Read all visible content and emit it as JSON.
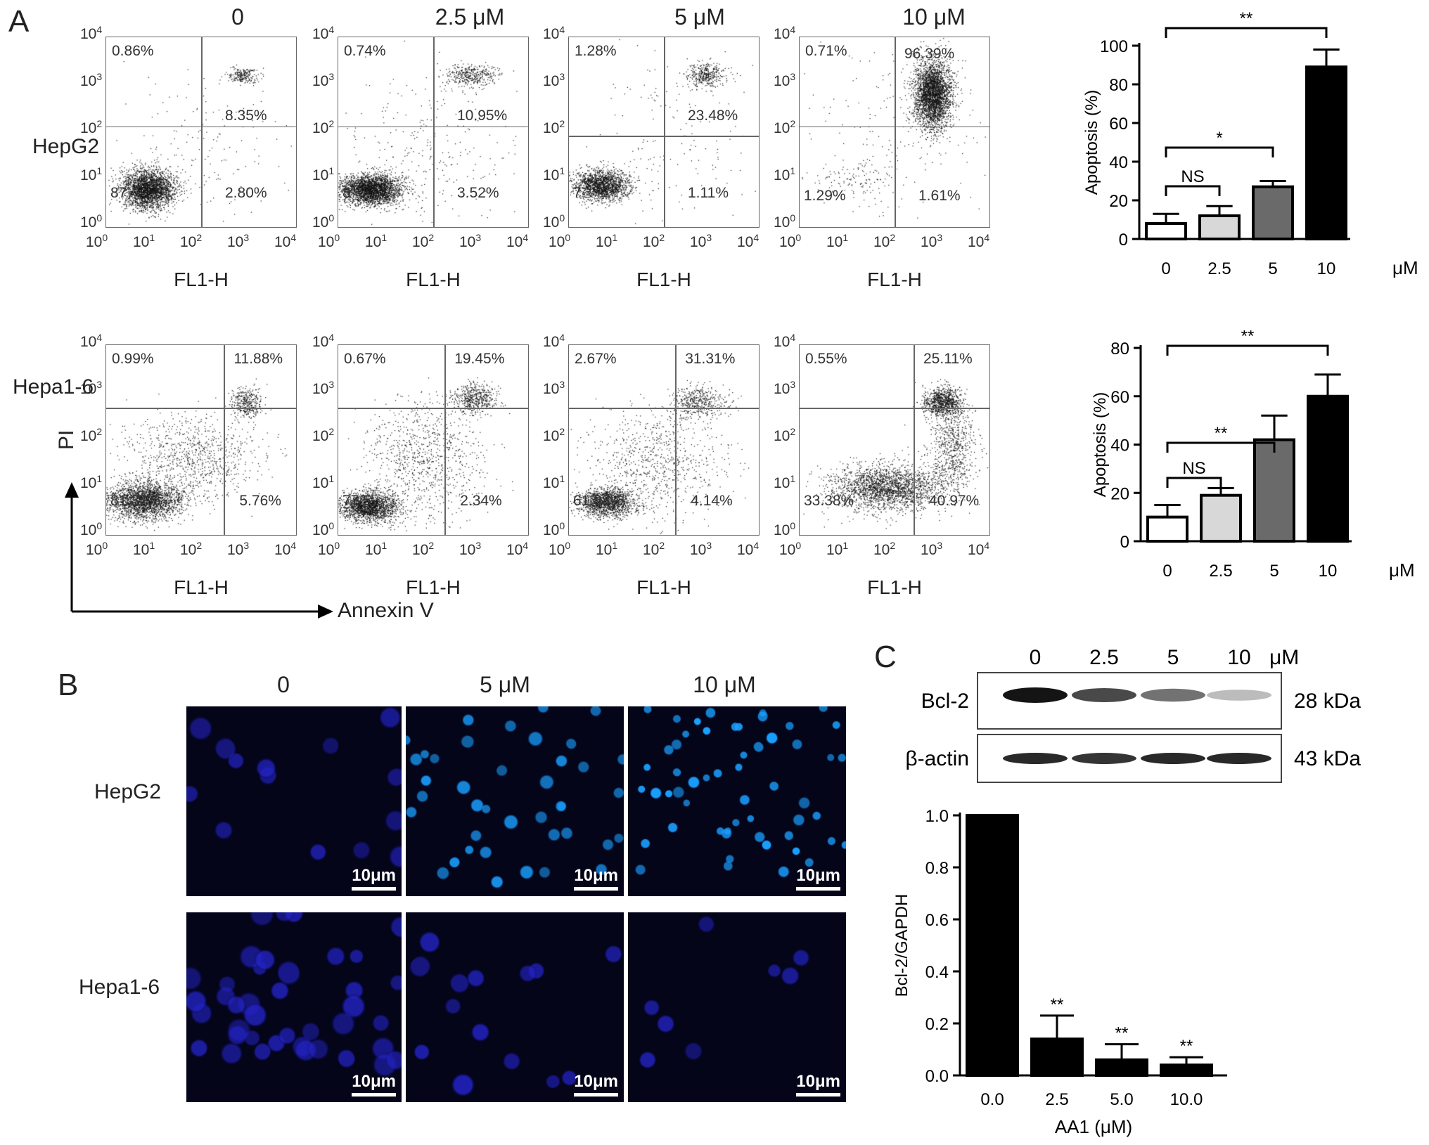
{
  "panel_a": {
    "letter": "A",
    "concentrations": [
      "0",
      "2.5 μM",
      "5 μM",
      "10 μM"
    ],
    "x_axis_name": "FL1-H",
    "axis_exp": [
      "0",
      "1",
      "2",
      "3",
      "4"
    ],
    "rows": [
      {
        "label": "HepG2",
        "plots": [
          {
            "ul": "0.86%",
            "ur": "8.35%",
            "ll": "87",
            "lr": "2.80%"
          },
          {
            "ul": "0.74%",
            "ur": "10.95%",
            "ll": "8",
            "lr": "3.52%"
          },
          {
            "ul": "1.28%",
            "ur": "23.48%",
            "ll": "7",
            "lr": "1.11%"
          },
          {
            "ul": "0.71%",
            "ur": "96.39%",
            "ll": "1.29%",
            "lr": "1.61%"
          }
        ]
      },
      {
        "label": "Hepa1-6",
        "plots": [
          {
            "ul": "0.99%",
            "ur": "11.88%",
            "ll": "81.37%",
            "lr": "5.76%"
          },
          {
            "ul": "0.67%",
            "ur": "19.45%",
            "ll": "77.5",
            "lr": "2.34%"
          },
          {
            "ul": "2.67%",
            "ur": "31.31%",
            "ll": "61.88%",
            "lr": "4.14%"
          },
          {
            "ul": "0.55%",
            "ur": "25.11%",
            "ll": "33.38%",
            "lr": "40.97%"
          }
        ]
      }
    ],
    "pi_label": "PI",
    "annexin_label": "Annexin V"
  },
  "chart_data": [
    {
      "type": "bar",
      "panel": "A-HepG2",
      "categories": [
        "0",
        "2.5",
        "5",
        "10"
      ],
      "values": [
        8,
        12,
        27,
        89
      ],
      "errors": [
        5,
        5,
        3,
        9
      ],
      "bar_colors": [
        "#ffffff",
        "#d8d8d8",
        "#6a6a6a",
        "#000000"
      ],
      "ylabel": "Apoptosis (%)",
      "x_unit": "μM",
      "ylim": [
        0,
        100
      ],
      "yticks": [
        "0",
        "20",
        "40",
        "60",
        "80",
        "100"
      ],
      "significance": [
        {
          "from": "0",
          "to": "2.5",
          "label": "NS"
        },
        {
          "from": "0",
          "to": "5",
          "label": "*"
        },
        {
          "from": "0",
          "to": "10",
          "label": "**"
        }
      ]
    },
    {
      "type": "bar",
      "panel": "A-Hepa1-6",
      "categories": [
        "0",
        "2.5",
        "5",
        "10"
      ],
      "values": [
        10,
        19,
        42,
        60
      ],
      "errors": [
        5,
        3,
        10,
        9
      ],
      "bar_colors": [
        "#ffffff",
        "#d8d8d8",
        "#6a6a6a",
        "#000000"
      ],
      "ylabel": "Apoptosis (%)",
      "x_unit": "μM",
      "ylim": [
        0,
        80
      ],
      "yticks": [
        "0",
        "20",
        "40",
        "60",
        "80"
      ],
      "significance": [
        {
          "from": "0",
          "to": "2.5",
          "label": "NS"
        },
        {
          "from": "0",
          "to": "5",
          "label": "**"
        },
        {
          "from": "0",
          "to": "10",
          "label": "**"
        }
      ]
    },
    {
      "type": "bar",
      "panel": "C",
      "categories": [
        "0.0",
        "2.5",
        "5.0",
        "10.0"
      ],
      "values": [
        1.0,
        0.14,
        0.06,
        0.04
      ],
      "errors": [
        0,
        0.09,
        0.06,
        0.03
      ],
      "bar_colors": [
        "#000000",
        "#000000",
        "#000000",
        "#000000"
      ],
      "ylabel": "Bcl-2/GAPDH",
      "xlabel": "AA1 (μM)",
      "ylim": [
        0,
        1.0
      ],
      "yticks": [
        "0.0",
        "0.2",
        "0.4",
        "0.6",
        "0.8",
        "1.0"
      ],
      "annotations": [
        "",
        "**",
        "**",
        "**"
      ]
    }
  ],
  "panel_b": {
    "letter": "B",
    "columns": [
      "0",
      "5 μM",
      "10 μM"
    ],
    "rows": [
      "HepG2",
      "Hepa1-6"
    ],
    "scale_label": "10μm",
    "colors": {
      "bg": "#05051a",
      "nucleus_dim": "#2424c8",
      "nucleus_bright": "#1aa0ff"
    }
  },
  "panel_c": {
    "letter": "C",
    "lanes": [
      "0",
      "2.5",
      "5",
      "10"
    ],
    "unit": "μM",
    "bands": [
      {
        "name": "Bcl-2",
        "kda": "28 kDa",
        "intensity": [
          1.0,
          0.75,
          0.55,
          0.2
        ]
      },
      {
        "name": "β-actin",
        "kda": "43 kDa",
        "intensity": [
          0.9,
          0.85,
          0.9,
          0.9
        ]
      }
    ]
  }
}
